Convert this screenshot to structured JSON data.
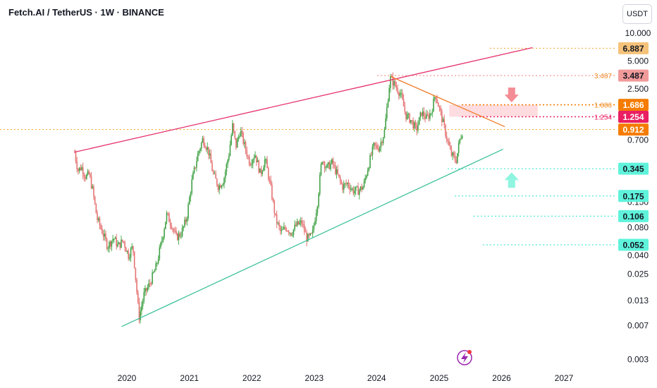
{
  "chart_data": {
    "type": "candlestick",
    "title": "Fetch.AI / TetherUS · 1W · BINANCE",
    "currency": "USDT",
    "y_scale": "log",
    "ylim": [
      0.0025,
      13.5
    ],
    "xlim": [
      "2019-03-01",
      "2027-06-01"
    ],
    "x_ticks": [
      "2020",
      "2021",
      "2022",
      "2023",
      "2024",
      "2025",
      "2026",
      "2027"
    ],
    "y_ticks": [
      "10.000",
      "5.000",
      "2.500",
      "0.700",
      "0.150",
      "0.080",
      "0.040",
      "0.025",
      "0.013",
      "0.007",
      "0.003"
    ],
    "current_price": "0.912",
    "price_badges": [
      {
        "label": "6.887",
        "value": 6.887,
        "color": "#f5c27a",
        "text_color": "#131722",
        "line_color": "#f0a830"
      },
      {
        "label": "3.487",
        "value": 3.487,
        "color": "#f19a9a",
        "text_color": "#131722",
        "line_color": "#f08080",
        "left_label": "3.487",
        "left_color": "#f08a24"
      },
      {
        "label": "1.686",
        "value": 1.686,
        "color": "#f57c00",
        "text_color": "#ffffff",
        "line_color": "#f57c00",
        "left_label": "1.686",
        "left_color": "#f08a24"
      },
      {
        "label": "1.254",
        "value": 1.254,
        "color": "#e91e63",
        "text_color": "#ffffff",
        "line_color": "#e91e63",
        "left_label": "1.254",
        "left_color": "#e91e63"
      },
      {
        "label": "0.912",
        "value": 0.912,
        "color": "#f57c00",
        "text_color": "#ffffff",
        "line_color": "#f5a623"
      },
      {
        "label": "0.345",
        "value": 0.345,
        "color": "#5ff3db",
        "text_color": "#131722",
        "line_color": "#2ee6c8"
      },
      {
        "label": "0.175",
        "value": 0.175,
        "color": "#5ff3db",
        "text_color": "#131722",
        "line_color": "#2ee6c8"
      },
      {
        "label": "0.106",
        "value": 0.106,
        "color": "#5ff3db",
        "text_color": "#131722",
        "line_color": "#2ee6c8"
      },
      {
        "label": "0.052",
        "value": 0.052,
        "color": "#5ff3db",
        "text_color": "#131722",
        "line_color": "#2ee6c8"
      }
    ],
    "trendlines": [
      {
        "name": "upper-channel",
        "color": "#e5316b",
        "points": [
          [
            "2019-03-01",
            0.52
          ],
          [
            "2026-07-01",
            7.0
          ]
        ]
      },
      {
        "name": "lower-channel",
        "color": "#3cc29a",
        "points": [
          [
            "2019-12-01",
            0.0068
          ],
          [
            "2026-01-10",
            0.56
          ]
        ]
      },
      {
        "name": "resistance",
        "color": "#ef7b24",
        "points": [
          [
            "2024-03-25",
            3.4
          ],
          [
            "2026-01-20",
            0.98
          ]
        ]
      }
    ],
    "resistance_zone": {
      "from": "2025-03-01",
      "to": "2026-08-01",
      "low": 1.254,
      "high": 1.686,
      "color": "#ffd3d8"
    },
    "arrows": [
      {
        "direction": "down",
        "date": "2026-03-01",
        "value": 2.1,
        "color": "#f48c95"
      },
      {
        "direction": "up",
        "date": "2026-03-01",
        "value": 0.26,
        "color": "#8ff5e0"
      }
    ],
    "price_path": [
      [
        "2019-03-01",
        0.52
      ],
      [
        "2019-03-20",
        0.33
      ],
      [
        "2019-04-10",
        0.36
      ],
      [
        "2019-05-05",
        0.28
      ],
      [
        "2019-05-25",
        0.3
      ],
      [
        "2019-06-15",
        0.2
      ],
      [
        "2019-07-10",
        0.1
      ],
      [
        "2019-08-10",
        0.072
      ],
      [
        "2019-09-10",
        0.05
      ],
      [
        "2019-10-15",
        0.062
      ],
      [
        "2019-11-10",
        0.05
      ],
      [
        "2019-12-10",
        0.058
      ],
      [
        "2020-01-10",
        0.04
      ],
      [
        "2020-02-05",
        0.05
      ],
      [
        "2020-03-12",
        0.0085
      ],
      [
        "2020-04-10",
        0.015
      ],
      [
        "2020-05-15",
        0.02
      ],
      [
        "2020-06-20",
        0.03
      ],
      [
        "2020-07-25",
        0.06
      ],
      [
        "2020-08-20",
        0.11
      ],
      [
        "2020-09-20",
        0.085
      ],
      [
        "2020-10-15",
        0.062
      ],
      [
        "2020-11-15",
        0.07
      ],
      [
        "2020-12-15",
        0.1
      ],
      [
        "2021-01-15",
        0.25
      ],
      [
        "2021-02-20",
        0.5
      ],
      [
        "2021-03-20",
        0.72
      ],
      [
        "2021-04-20",
        0.55
      ],
      [
        "2021-05-20",
        0.3
      ],
      [
        "2021-06-20",
        0.22
      ],
      [
        "2021-07-20",
        0.26
      ],
      [
        "2021-08-20",
        0.5
      ],
      [
        "2021-09-10",
        1.0
      ],
      [
        "2021-09-30",
        0.6
      ],
      [
        "2021-10-25",
        0.9
      ],
      [
        "2021-11-20",
        0.6
      ],
      [
        "2021-12-20",
        0.4
      ],
      [
        "2022-01-20",
        0.5
      ],
      [
        "2022-02-20",
        0.3
      ],
      [
        "2022-03-20",
        0.44
      ],
      [
        "2022-04-20",
        0.22
      ],
      [
        "2022-05-20",
        0.1
      ],
      [
        "2022-06-20",
        0.07
      ],
      [
        "2022-07-20",
        0.08
      ],
      [
        "2022-08-20",
        0.07
      ],
      [
        "2022-09-20",
        0.085
      ],
      [
        "2022-10-20",
        0.09
      ],
      [
        "2022-11-20",
        0.06
      ],
      [
        "2022-12-20",
        0.065
      ],
      [
        "2023-01-20",
        0.15
      ],
      [
        "2023-02-15",
        0.45
      ],
      [
        "2023-03-15",
        0.35
      ],
      [
        "2023-04-15",
        0.4
      ],
      [
        "2023-05-15",
        0.3
      ],
      [
        "2023-06-15",
        0.22
      ],
      [
        "2023-07-15",
        0.24
      ],
      [
        "2023-08-15",
        0.2
      ],
      [
        "2023-09-15",
        0.2
      ],
      [
        "2023-10-15",
        0.22
      ],
      [
        "2023-11-15",
        0.38
      ],
      [
        "2023-12-15",
        0.6
      ],
      [
        "2024-01-15",
        0.58
      ],
      [
        "2024-02-15",
        0.85
      ],
      [
        "2024-03-20",
        3.3
      ],
      [
        "2024-04-20",
        2.7
      ],
      [
        "2024-05-20",
        2.2
      ],
      [
        "2024-06-20",
        1.3
      ],
      [
        "2024-07-20",
        1.15
      ],
      [
        "2024-08-20",
        0.9
      ],
      [
        "2024-09-20",
        1.4
      ],
      [
        "2024-10-20",
        1.2
      ],
      [
        "2024-11-15",
        1.4
      ],
      [
        "2024-12-10",
        2.2
      ],
      [
        "2025-01-10",
        1.35
      ],
      [
        "2025-02-10",
        0.8
      ],
      [
        "2025-03-10",
        0.5
      ],
      [
        "2025-04-10",
        0.42
      ],
      [
        "2025-05-01",
        0.7
      ],
      [
        "2025-05-20",
        0.912
      ]
    ]
  }
}
